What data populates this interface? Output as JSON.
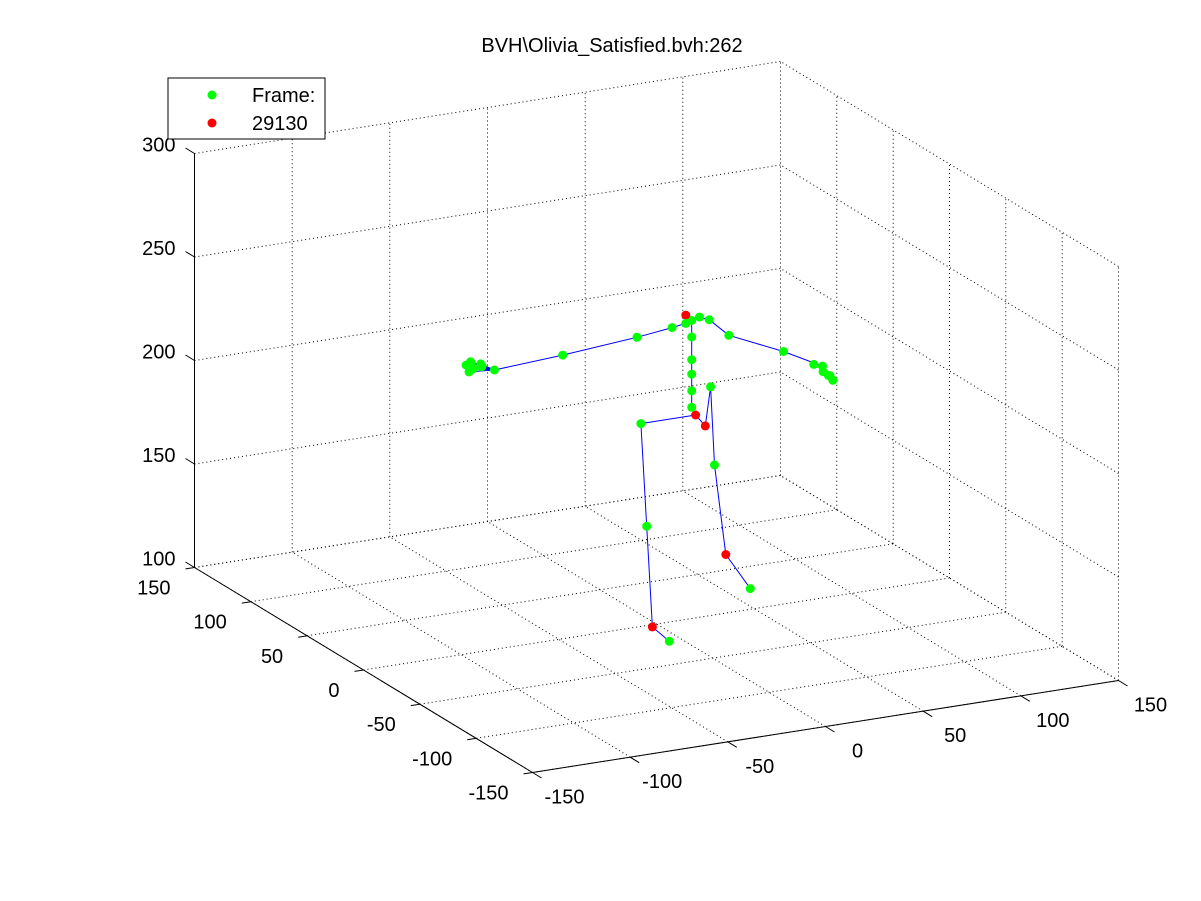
{
  "chart_data": {
    "type": "scatter",
    "title": "BVH\\Olivia_Satisfied.bvh:262",
    "xlim": [
      -150,
      150
    ],
    "ylim": [
      -150,
      150
    ],
    "zlim": [
      100,
      300
    ],
    "x_ticks": [
      "-150",
      "-100",
      "-50",
      "0",
      "50",
      "100",
      "150"
    ],
    "y_ticks": [
      "-150",
      "-100",
      "-50",
      "0",
      "50",
      "100",
      "150"
    ],
    "z_ticks": [
      "100",
      "150",
      "200",
      "250",
      "300"
    ],
    "grid": true,
    "legend_position": "top-left",
    "legend": [
      {
        "label": "Frame:",
        "color": "#00ff00"
      },
      {
        "label": "29130",
        "color": "#ff0000"
      }
    ],
    "bone_color": "#0000ff",
    "joints": [
      {
        "x": 20,
        "y": 0,
        "z": 198,
        "c": "r"
      },
      {
        "x": 25,
        "y": 0,
        "z": 192,
        "c": "r"
      },
      {
        "x": 45,
        "y": 30,
        "z": 198,
        "c": "g"
      },
      {
        "x": 47,
        "y": 30,
        "z": 160,
        "c": "g"
      },
      {
        "x": 47,
        "y": 20,
        "z": 120,
        "c": "r"
      },
      {
        "x": 48,
        "y": 0,
        "z": 110,
        "c": "g"
      },
      {
        "x": -8,
        "y": 0,
        "z": 198,
        "c": "g"
      },
      {
        "x": -5,
        "y": 0,
        "z": 148,
        "c": "g"
      },
      {
        "x": -5,
        "y": -5,
        "z": 101,
        "c": "r"
      },
      {
        "x": -5,
        "y": -20,
        "z": 99,
        "c": "g"
      },
      {
        "x": 18,
        "y": 0,
        "z": 202,
        "c": "g"
      },
      {
        "x": 18,
        "y": 0,
        "z": 210,
        "c": "g"
      },
      {
        "x": 18,
        "y": 0,
        "z": 218,
        "c": "g"
      },
      {
        "x": 18,
        "y": 0,
        "z": 225,
        "c": "g"
      },
      {
        "x": 18,
        "y": 0,
        "z": 236,
        "c": "g"
      },
      {
        "x": 18,
        "y": 0,
        "z": 244,
        "c": "g"
      },
      {
        "x": 15,
        "y": 0,
        "z": 247,
        "c": "r"
      },
      {
        "x": 15,
        "y": 0,
        "z": 243,
        "c": "g"
      },
      {
        "x": 22,
        "y": 0,
        "z": 245,
        "c": "g"
      },
      {
        "x": 27,
        "y": 0,
        "z": 243,
        "c": "g"
      },
      {
        "x": 37,
        "y": 0,
        "z": 234,
        "c": "g"
      },
      {
        "x": 65,
        "y": 0,
        "z": 222,
        "c": "g"
      },
      {
        "x": 85,
        "y": 0,
        "z": 212,
        "c": "g"
      },
      {
        "x": 87,
        "y": 3,
        "z": 208,
        "c": "g"
      },
      {
        "x": 88,
        "y": 0,
        "z": 207,
        "c": "g"
      },
      {
        "x": 88,
        "y": -4,
        "z": 206,
        "c": "g"
      },
      {
        "x": 90,
        "y": 2,
        "z": 206,
        "c": "g"
      },
      {
        "x": 84,
        "y": 6,
        "z": 211,
        "c": "g"
      },
      {
        "x": 8,
        "y": 0,
        "z": 242,
        "c": "g"
      },
      {
        "x": -10,
        "y": 0,
        "z": 240,
        "c": "g"
      },
      {
        "x": -48,
        "y": 0,
        "z": 237,
        "c": "g"
      },
      {
        "x": -83,
        "y": 0,
        "z": 235,
        "c": "g"
      },
      {
        "x": -90,
        "y": 0,
        "z": 239,
        "c": "g"
      },
      {
        "x": -92,
        "y": 5,
        "z": 238,
        "c": "g"
      },
      {
        "x": -91,
        "y": -3,
        "z": 239,
        "c": "g"
      },
      {
        "x": -94,
        "y": 2,
        "z": 240,
        "c": "g"
      },
      {
        "x": -95,
        "y": -2,
        "z": 238,
        "c": "g"
      },
      {
        "x": -94,
        "y": 6,
        "z": 237,
        "c": "g"
      },
      {
        "x": -96,
        "y": 0,
        "z": 236,
        "c": "g"
      },
      {
        "x": -93,
        "y": -6,
        "z": 240,
        "c": "g"
      }
    ],
    "bones": [
      [
        0,
        1
      ],
      [
        1,
        2
      ],
      [
        2,
        3
      ],
      [
        3,
        4
      ],
      [
        4,
        5
      ],
      [
        0,
        6
      ],
      [
        6,
        7
      ],
      [
        7,
        8
      ],
      [
        8,
        9
      ],
      [
        0,
        10
      ],
      [
        10,
        11
      ],
      [
        11,
        12
      ],
      [
        12,
        13
      ],
      [
        13,
        14
      ],
      [
        14,
        15
      ],
      [
        15,
        16
      ],
      [
        15,
        17
      ],
      [
        17,
        18
      ],
      [
        18,
        19
      ],
      [
        19,
        20
      ],
      [
        20,
        21
      ],
      [
        21,
        22
      ],
      [
        22,
        23
      ],
      [
        22,
        24
      ],
      [
        22,
        25
      ],
      [
        22,
        26
      ],
      [
        22,
        27
      ],
      [
        17,
        28
      ],
      [
        28,
        29
      ],
      [
        29,
        30
      ],
      [
        30,
        31
      ],
      [
        31,
        32
      ],
      [
        31,
        33
      ],
      [
        31,
        34
      ],
      [
        31,
        35
      ],
      [
        31,
        36
      ],
      [
        31,
        37
      ],
      [
        31,
        38
      ],
      [
        31,
        39
      ]
    ]
  }
}
